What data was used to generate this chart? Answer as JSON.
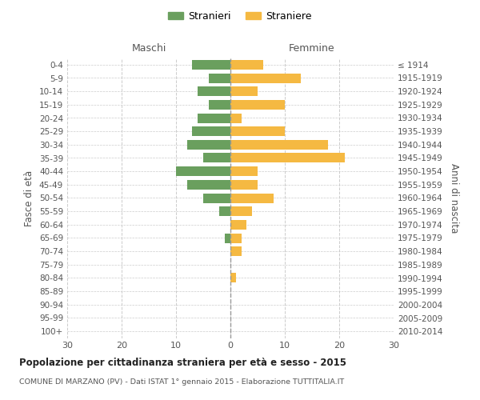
{
  "age_groups": [
    "0-4",
    "5-9",
    "10-14",
    "15-19",
    "20-24",
    "25-29",
    "30-34",
    "35-39",
    "40-44",
    "45-49",
    "50-54",
    "55-59",
    "60-64",
    "65-69",
    "70-74",
    "75-79",
    "80-84",
    "85-89",
    "90-94",
    "95-99",
    "100+"
  ],
  "birth_years": [
    "2010-2014",
    "2005-2009",
    "2000-2004",
    "1995-1999",
    "1990-1994",
    "1985-1989",
    "1980-1984",
    "1975-1979",
    "1970-1974",
    "1965-1969",
    "1960-1964",
    "1955-1959",
    "1950-1954",
    "1945-1949",
    "1940-1944",
    "1935-1939",
    "1930-1934",
    "1925-1929",
    "1920-1924",
    "1915-1919",
    "≤ 1914"
  ],
  "maschi": [
    7,
    4,
    6,
    4,
    6,
    7,
    8,
    5,
    10,
    8,
    5,
    2,
    0,
    1,
    0,
    0,
    0,
    0,
    0,
    0,
    0
  ],
  "femmine": [
    6,
    13,
    5,
    10,
    2,
    10,
    18,
    21,
    5,
    5,
    8,
    4,
    3,
    2,
    2,
    0,
    1,
    0,
    0,
    0,
    0
  ],
  "color_maschi": "#6a9f5e",
  "color_femmine": "#f5b942",
  "title": "Popolazione per cittadinanza straniera per età e sesso - 2015",
  "subtitle": "COMUNE DI MARZANO (PV) - Dati ISTAT 1° gennaio 2015 - Elaborazione TUTTITALIA.IT",
  "label_maschi": "Maschi",
  "label_femmine": "Femmine",
  "legend_stranieri": "Stranieri",
  "legend_straniere": "Straniere",
  "ylabel_left": "Fasce di età",
  "ylabel_right": "Anni di nascita",
  "xlim": 30,
  "bar_background": "#ffffff"
}
